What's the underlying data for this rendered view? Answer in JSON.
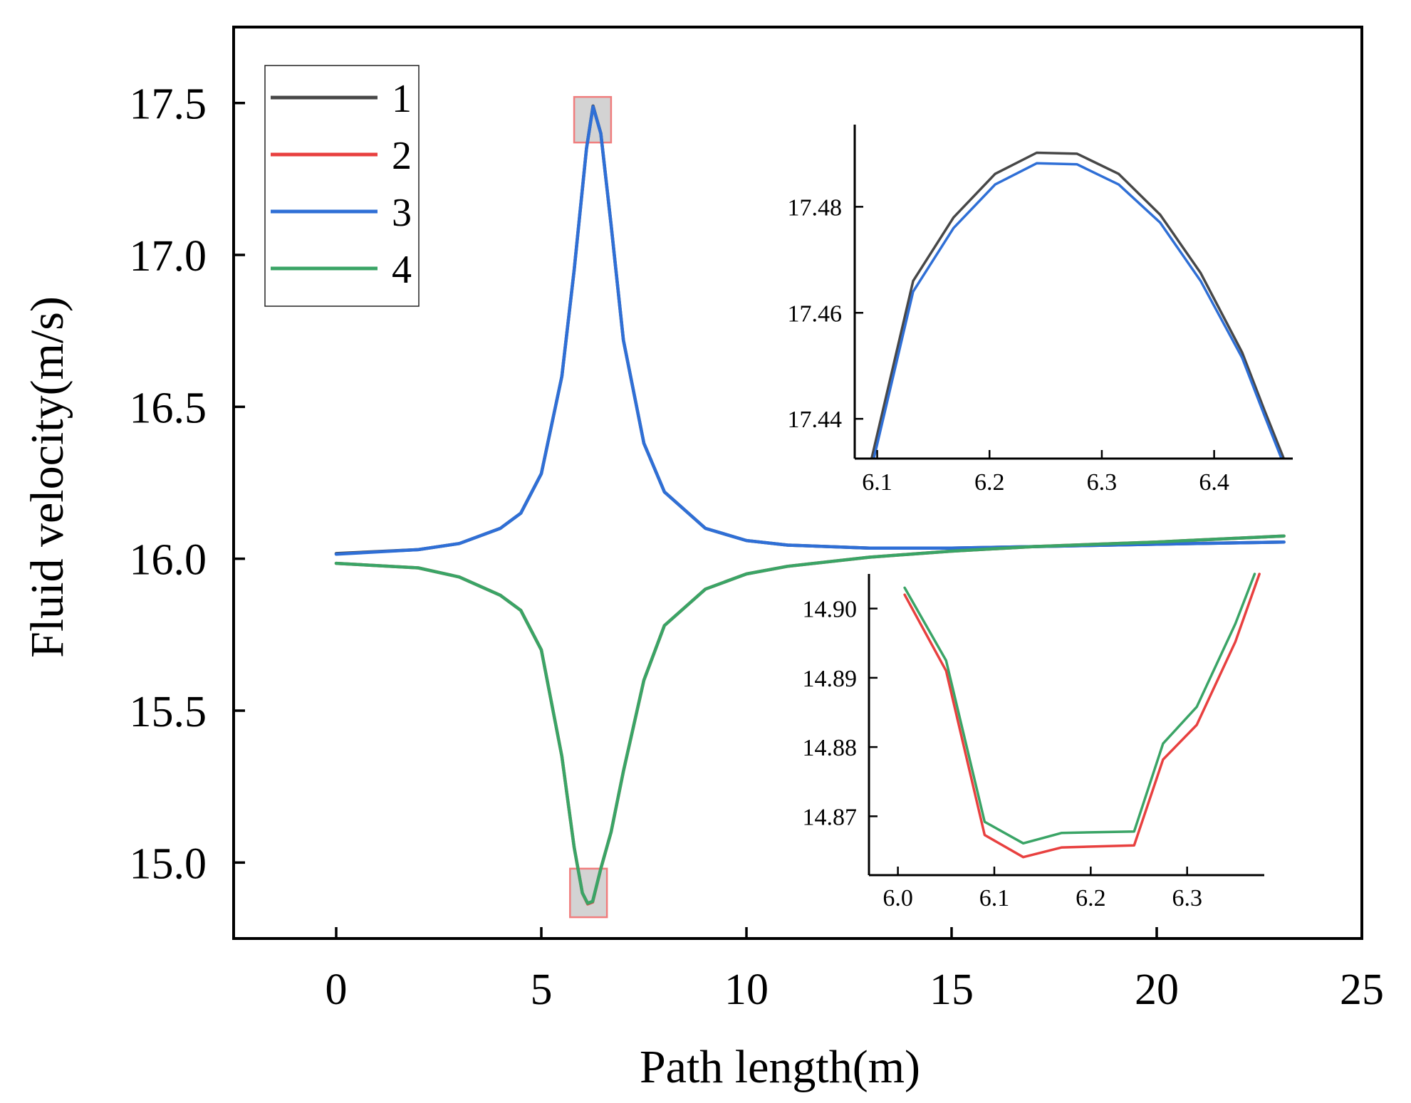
{
  "colors": {
    "series1": "#474747",
    "series2": "#e8403f",
    "series3": "#2f6fd6",
    "series4": "#3aa466",
    "axis": "#000000",
    "highlight_fill": "#d3d3d3",
    "highlight_stroke": "#f07d7d"
  },
  "chart_data": [
    {
      "id": "main",
      "type": "line",
      "xlabel": "Path length(m)",
      "ylabel": "Fluid velocity(m/s)",
      "xlim": [
        -2.5,
        25
      ],
      "ylim": [
        14.75,
        17.75
      ],
      "xticks": [
        0,
        5,
        10,
        15,
        20,
        25
      ],
      "xtick_labels": [
        "0",
        "5",
        "10",
        "15",
        "20",
        "25"
      ],
      "yticks": [
        15.0,
        15.5,
        16.0,
        16.5,
        17.0,
        17.5
      ],
      "ytick_labels": [
        "15.0",
        "15.5",
        "16.0",
        "16.5",
        "17.0",
        "17.5"
      ],
      "legend": {
        "position": "top-left",
        "entries": [
          "1",
          "2",
          "3",
          "4"
        ]
      },
      "series": [
        {
          "name": "1",
          "color": "#474747",
          "x": [
            0,
            2,
            3,
            4,
            4.5,
            5,
            5.5,
            5.8,
            6.1,
            6.26,
            6.45,
            6.7,
            7,
            7.5,
            8,
            9,
            10,
            11,
            13,
            15,
            17,
            20,
            23.1
          ],
          "y": [
            16.017,
            16.03,
            16.05,
            16.1,
            16.15,
            16.28,
            16.6,
            16.95,
            17.35,
            17.49,
            17.4,
            17.1,
            16.72,
            16.38,
            16.22,
            16.1,
            16.06,
            16.045,
            16.035,
            16.035,
            16.04,
            16.048,
            16.055
          ]
        },
        {
          "name": "2",
          "color": "#e8403f",
          "x": [
            0,
            2,
            3,
            4,
            4.5,
            5,
            5.5,
            5.8,
            6.0,
            6.13,
            6.25,
            6.45,
            6.7,
            7,
            7.5,
            8,
            9,
            10,
            11,
            13,
            15,
            17,
            20,
            23.1
          ],
          "y": [
            15.985,
            15.97,
            15.94,
            15.88,
            15.83,
            15.7,
            15.35,
            15.05,
            14.9,
            14.864,
            14.87,
            14.98,
            15.1,
            15.3,
            15.6,
            15.78,
            15.9,
            15.95,
            15.975,
            16.005,
            16.025,
            16.04,
            16.055,
            16.075
          ]
        },
        {
          "name": "3",
          "color": "#2f6fd6",
          "x": [
            0,
            2,
            3,
            4,
            4.5,
            5,
            5.5,
            5.8,
            6.1,
            6.26,
            6.45,
            6.7,
            7,
            7.5,
            8,
            9,
            10,
            11,
            13,
            15,
            17,
            20,
            23.1
          ],
          "y": [
            16.015,
            16.03,
            16.05,
            16.1,
            16.15,
            16.28,
            16.6,
            16.95,
            17.35,
            17.488,
            17.4,
            17.1,
            16.72,
            16.38,
            16.22,
            16.1,
            16.06,
            16.045,
            16.035,
            16.035,
            16.04,
            16.048,
            16.055
          ]
        },
        {
          "name": "4",
          "color": "#3aa466",
          "x": [
            0,
            2,
            3,
            4,
            4.5,
            5,
            5.5,
            5.8,
            6.0,
            6.13,
            6.25,
            6.45,
            6.7,
            7,
            7.5,
            8,
            9,
            10,
            11,
            13,
            15,
            17,
            20,
            23.1
          ],
          "y": [
            15.985,
            15.97,
            15.94,
            15.88,
            15.83,
            15.7,
            15.35,
            15.05,
            14.9,
            14.866,
            14.872,
            14.98,
            15.1,
            15.3,
            15.6,
            15.78,
            15.9,
            15.95,
            15.975,
            16.005,
            16.025,
            16.04,
            16.055,
            16.075
          ]
        }
      ],
      "highlight_regions": [
        {
          "x": [
            5.8,
            6.7
          ],
          "y": [
            17.37,
            17.52
          ]
        },
        {
          "x": [
            5.7,
            6.6
          ],
          "y": [
            14.82,
            14.98
          ]
        }
      ]
    },
    {
      "id": "inset-top",
      "type": "line",
      "xlim": [
        6.08,
        6.47
      ],
      "ylim": [
        17.4325,
        17.4955
      ],
      "xticks": [
        6.1,
        6.2,
        6.3,
        6.4
      ],
      "xtick_labels": [
        "6.1",
        "6.2",
        "6.3",
        "6.4"
      ],
      "yticks": [
        17.44,
        17.46,
        17.48
      ],
      "ytick_labels": [
        "17.44",
        "17.46",
        "17.48"
      ],
      "series": [
        {
          "name": "1",
          "color": "#474747",
          "x": [
            6.095,
            6.132,
            6.168,
            6.205,
            6.242,
            6.278,
            6.315,
            6.352,
            6.388,
            6.425,
            6.445,
            6.462
          ],
          "y": [
            17.4325,
            17.466,
            17.478,
            17.4862,
            17.4902,
            17.49,
            17.4862,
            17.4785,
            17.4675,
            17.4525,
            17.4415,
            17.4325
          ]
        },
        {
          "name": "3",
          "color": "#2f6fd6",
          "x": [
            6.097,
            6.132,
            6.168,
            6.205,
            6.242,
            6.278,
            6.315,
            6.352,
            6.388,
            6.425,
            6.445,
            6.46
          ],
          "y": [
            17.4325,
            17.464,
            17.476,
            17.4842,
            17.4882,
            17.488,
            17.4842,
            17.477,
            17.466,
            17.4515,
            17.4405,
            17.4325
          ]
        }
      ]
    },
    {
      "id": "inset-bottom",
      "type": "line",
      "xlim": [
        5.97,
        6.38
      ],
      "ylim": [
        14.8615,
        14.905
      ],
      "xticks": [
        6.0,
        6.1,
        6.2,
        6.3
      ],
      "xtick_labels": [
        "6.0",
        "6.1",
        "6.2",
        "6.3"
      ],
      "yticks": [
        14.87,
        14.88,
        14.89,
        14.9
      ],
      "ytick_labels": [
        "14.87",
        "14.88",
        "14.89",
        "14.90"
      ],
      "series": [
        {
          "name": "2",
          "color": "#e8403f",
          "x": [
            6.007,
            6.05,
            6.09,
            6.13,
            6.17,
            6.245,
            6.275,
            6.31,
            6.35,
            6.375
          ],
          "y": [
            14.902,
            14.891,
            14.8673,
            14.8641,
            14.8655,
            14.8658,
            14.8782,
            14.8832,
            14.8952,
            14.905
          ]
        },
        {
          "name": "4",
          "color": "#3aa466",
          "x": [
            6.007,
            6.05,
            6.09,
            6.13,
            6.17,
            6.245,
            6.275,
            6.31,
            6.35,
            6.37
          ],
          "y": [
            14.903,
            14.8925,
            14.8692,
            14.8661,
            14.8676,
            14.8678,
            14.8805,
            14.8858,
            14.8978,
            14.905
          ]
        }
      ]
    }
  ]
}
